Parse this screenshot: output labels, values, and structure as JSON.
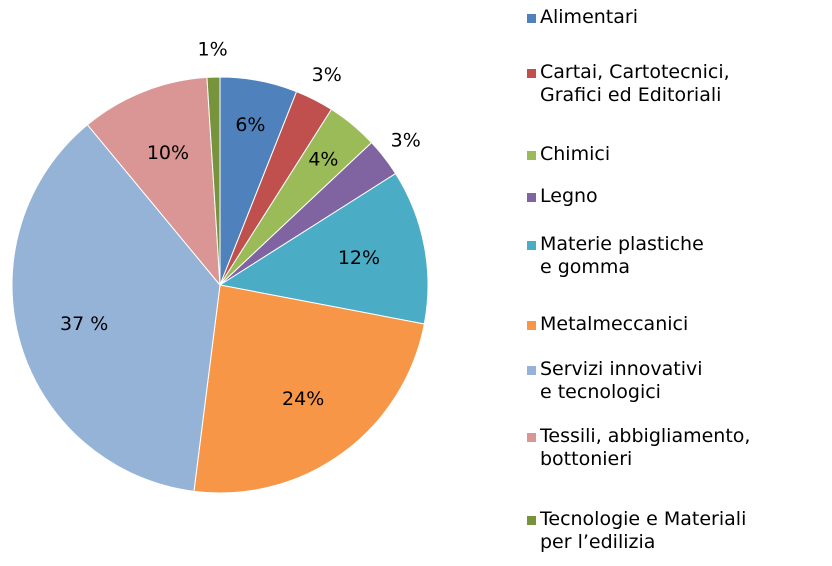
{
  "chart_data": {
    "type": "pie",
    "categories": [
      "Alimentari",
      "Cartai, Cartotecnici,\nGrafici ed Editoriali",
      "Chimici",
      "Legno",
      "Materie plastiche\ne gomma",
      "Metalmeccanici",
      "Servizi innovativi\ne tecnologici",
      "Tessili, abbigliamento,\nbottonieri",
      "Tecnologie e Materiali\nper l’edilizia"
    ],
    "values": [
      6,
      3,
      4,
      3,
      12,
      24,
      37,
      10,
      1
    ],
    "value_labels": [
      "6%",
      "3%",
      "4%",
      "3%",
      "12%",
      "24%",
      "37 %",
      "10%",
      "1%"
    ],
    "colors": [
      "#4f81bd",
      "#c0504d",
      "#9bbb59",
      "#8064a2",
      "#4bacc6",
      "#f79646",
      "#95b3d7",
      "#d99694",
      "#77933c"
    ],
    "legend": "right"
  }
}
